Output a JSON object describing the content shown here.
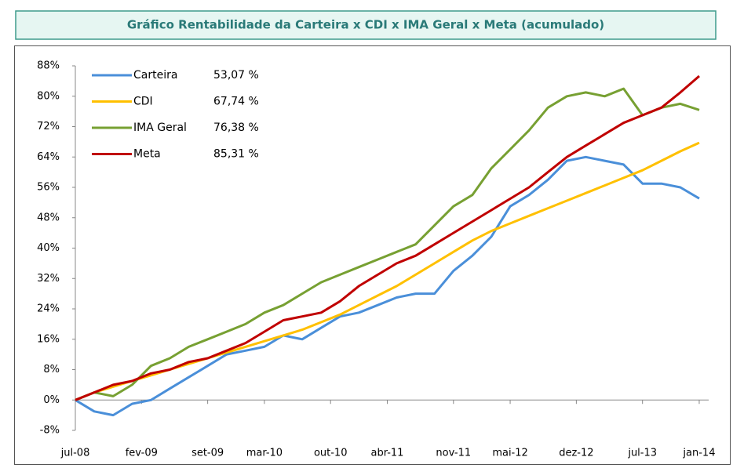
{
  "chart_data": {
    "type": "line",
    "title": "Gráfico Rentabilidade da Carteira x CDI x IMA Geral x Meta (acumulado)",
    "x": [
      0,
      2,
      4,
      6,
      8,
      10,
      12,
      14,
      16,
      18,
      20,
      22,
      24,
      26,
      28,
      30,
      32,
      34,
      36,
      38,
      40,
      42,
      44,
      46,
      48,
      50,
      52,
      54,
      56,
      58,
      60,
      62,
      64,
      66
    ],
    "series": [
      {
        "name": "Carteira",
        "color": "#4a8fd9",
        "last_label": "53,07 %",
        "values": [
          0,
          -3,
          -4,
          -1,
          0,
          3,
          6,
          9,
          12,
          13,
          14,
          17,
          16,
          19,
          22,
          23,
          25,
          27,
          28,
          28,
          34,
          38,
          43,
          51,
          54,
          58,
          63,
          64,
          63,
          62,
          57,
          57,
          56,
          53.07
        ]
      },
      {
        "name": "CDI",
        "color": "#ffc000",
        "last_label": "67,74 %",
        "values": [
          0,
          2,
          3.5,
          5,
          6.5,
          8,
          9.5,
          11,
          12.5,
          14,
          15.5,
          17,
          18.5,
          20.5,
          22.5,
          25,
          27.5,
          30,
          33,
          36,
          39,
          42,
          44.5,
          46.5,
          48.5,
          50.5,
          52.5,
          54.5,
          56.5,
          58.5,
          60.5,
          63,
          65.5,
          67.74
        ]
      },
      {
        "name": "IMA Geral",
        "color": "#77a032",
        "last_label": "76,38 %",
        "values": [
          0,
          2,
          1,
          4,
          9,
          11,
          14,
          16,
          18,
          20,
          23,
          25,
          28,
          31,
          33,
          35,
          37,
          39,
          41,
          46,
          51,
          54,
          61,
          66,
          71,
          77,
          80,
          81,
          80,
          82,
          75,
          77,
          78,
          76.38
        ]
      },
      {
        "name": "Meta",
        "color": "#c00000",
        "last_label": "85,31 %",
        "values": [
          0,
          2,
          4,
          5,
          7,
          8,
          10,
          11,
          13,
          15,
          18,
          21,
          22,
          23,
          26,
          30,
          33,
          36,
          38,
          41,
          44,
          47,
          50,
          53,
          56,
          60,
          64,
          67,
          70,
          73,
          75,
          77,
          81,
          85.31
        ]
      }
    ],
    "xlim": [
      0,
      67
    ],
    "xticks": [
      {
        "value": 0,
        "label": "jul-08"
      },
      {
        "value": 7,
        "label": "fev-09"
      },
      {
        "value": 14,
        "label": "set-09"
      },
      {
        "value": 20,
        "label": "mar-10"
      },
      {
        "value": 27,
        "label": "out-10"
      },
      {
        "value": 33,
        "label": "abr-11"
      },
      {
        "value": 40,
        "label": "nov-11"
      },
      {
        "value": 46,
        "label": "mai-12"
      },
      {
        "value": 53,
        "label": "dez-12"
      },
      {
        "value": 60,
        "label": "jul-13"
      },
      {
        "value": 66,
        "label": "jan-14"
      }
    ],
    "ylim": [
      -8,
      88
    ],
    "yticks": [
      {
        "value": -8,
        "label": "-8%"
      },
      {
        "value": 0,
        "label": "0%"
      },
      {
        "value": 8,
        "label": "8%"
      },
      {
        "value": 16,
        "label": "16%"
      },
      {
        "value": 24,
        "label": "24%"
      },
      {
        "value": 32,
        "label": "32%"
      },
      {
        "value": 40,
        "label": "40%"
      },
      {
        "value": 48,
        "label": "48%"
      },
      {
        "value": 56,
        "label": "56%"
      },
      {
        "value": 64,
        "label": "64%"
      },
      {
        "value": 72,
        "label": "72%"
      },
      {
        "value": 80,
        "label": "80%"
      },
      {
        "value": 88,
        "label": "88%"
      }
    ],
    "grid": false
  }
}
